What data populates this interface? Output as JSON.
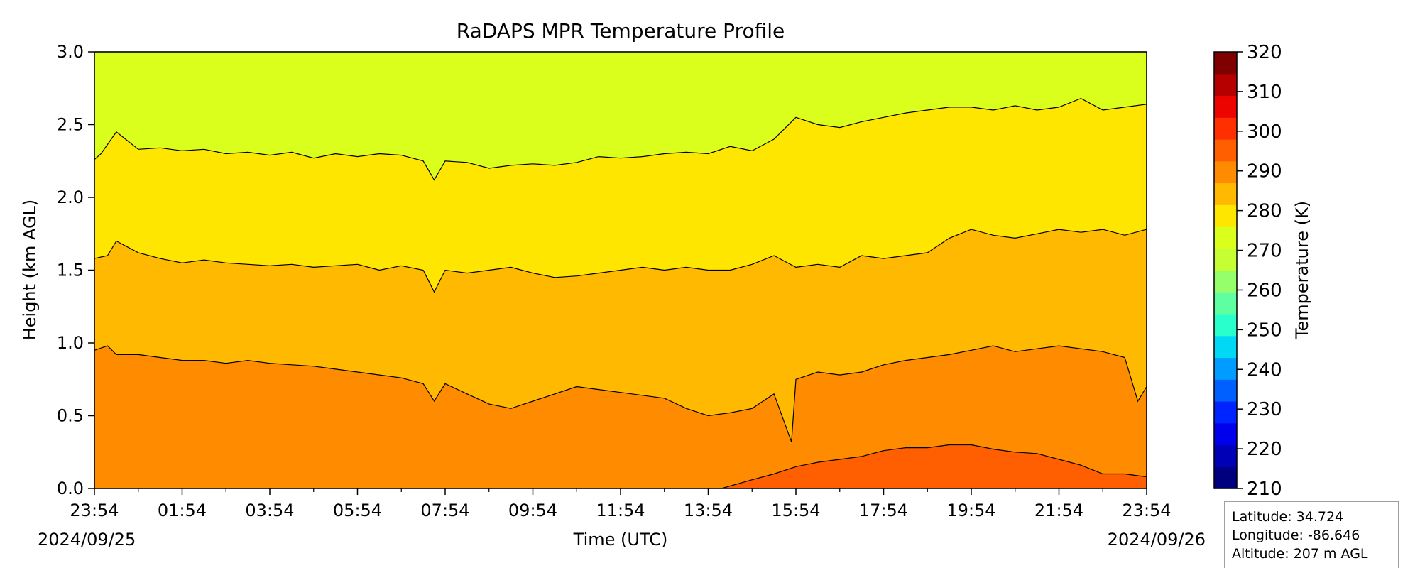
{
  "chart_data": {
    "type": "heatmap",
    "subtype": "filled-contour",
    "title": "RaDAPS MPR Temperature Profile",
    "xlabel": "Time (UTC)",
    "ylabel": "Height (km AGL)",
    "x_ticks": [
      "23:54",
      "01:54",
      "03:54",
      "05:54",
      "07:54",
      "09:54",
      "11:54",
      "13:54",
      "15:54",
      "17:54",
      "19:54",
      "21:54",
      "23:54"
    ],
    "x_start_date": "2024/09/25",
    "x_end_date": "2024/09/26",
    "y_range": [
      0.0,
      3.0
    ],
    "y_ticks": [
      "0.0",
      "0.5",
      "1.0",
      "1.5",
      "2.0",
      "2.5",
      "3.0"
    ],
    "colorbar": {
      "label": "Temperature (K)",
      "range": [
        210,
        320
      ],
      "tick_values": [
        210,
        220,
        230,
        240,
        250,
        260,
        270,
        280,
        290,
        300,
        310,
        320
      ],
      "level_step": 5,
      "colormap": "jet",
      "level_colors": [
        "#00007f",
        "#0000b6",
        "#0000ed",
        "#0024ff",
        "#0060ff",
        "#009cff",
        "#00d8f6",
        "#29ffcd",
        "#5effa0",
        "#94ff6a",
        "#c5ff33",
        "#dbff1c",
        "#ffe600",
        "#ffb900",
        "#ff8c00",
        "#ff5f00",
        "#ff2f00",
        "#ed0400",
        "#b60000",
        "#7f0000"
      ]
    },
    "contour_bands": [
      {
        "range_K": "295-300",
        "color": "#ff5f00"
      },
      {
        "range_K": "290-295",
        "color": "#ff8c00"
      },
      {
        "range_K": "285-290",
        "color": "#ffb900"
      },
      {
        "range_K": "280-285",
        "color": "#ffe600"
      },
      {
        "range_K": "275-280",
        "color": "#dbff1c"
      },
      {
        "range_K": "270-275",
        "color": "#94ff6a"
      }
    ],
    "isolines": [
      {
        "level_K": 285,
        "hours": [
          0,
          0.15,
          0.5,
          1,
          1.5,
          2,
          2.5,
          3,
          3.5,
          4,
          4.5,
          5,
          5.5,
          6,
          6.5,
          7,
          7.5,
          7.75,
          8,
          8.5,
          9,
          9.5,
          10,
          10.5,
          11,
          11.5,
          12,
          12.5,
          13,
          13.5,
          14,
          14.5,
          15,
          15.5,
          16,
          16.5,
          17,
          17.5,
          18,
          18.5,
          19,
          19.5,
          20,
          20.5,
          21,
          21.5,
          22,
          22.5,
          23,
          23.5,
          24
        ],
        "heights_km": [
          2.26,
          2.3,
          2.45,
          2.33,
          2.34,
          2.32,
          2.33,
          2.3,
          2.31,
          2.29,
          2.31,
          2.27,
          2.3,
          2.28,
          2.3,
          2.29,
          2.25,
          2.12,
          2.25,
          2.24,
          2.2,
          2.22,
          2.23,
          2.22,
          2.24,
          2.28,
          2.27,
          2.28,
          2.3,
          2.31,
          2.3,
          2.35,
          2.32,
          2.4,
          2.55,
          2.5,
          2.48,
          2.52,
          2.55,
          2.58,
          2.6,
          2.62,
          2.62,
          2.6,
          2.63,
          2.6,
          2.62,
          2.68,
          2.6,
          2.62,
          2.64
        ]
      },
      {
        "level_K": 290,
        "hours": [
          0,
          0.3,
          0.5,
          1,
          1.5,
          2,
          2.5,
          3,
          3.5,
          4,
          4.5,
          5,
          5.5,
          6,
          6.5,
          7,
          7.5,
          7.75,
          8,
          8.5,
          9,
          9.5,
          10,
          10.5,
          11,
          11.5,
          12,
          12.5,
          13,
          13.5,
          14,
          14.5,
          15,
          15.5,
          16,
          16.5,
          17,
          17.5,
          18,
          18.5,
          19,
          19.5,
          20,
          20.5,
          21,
          21.5,
          22,
          22.5,
          23,
          23.5,
          24
        ],
        "heights_km": [
          1.58,
          1.6,
          1.7,
          1.62,
          1.58,
          1.55,
          1.57,
          1.55,
          1.54,
          1.53,
          1.54,
          1.52,
          1.53,
          1.54,
          1.5,
          1.53,
          1.5,
          1.35,
          1.5,
          1.48,
          1.5,
          1.52,
          1.48,
          1.45,
          1.46,
          1.48,
          1.5,
          1.52,
          1.5,
          1.52,
          1.5,
          1.5,
          1.54,
          1.6,
          1.52,
          1.54,
          1.52,
          1.6,
          1.58,
          1.6,
          1.62,
          1.72,
          1.78,
          1.74,
          1.72,
          1.75,
          1.78,
          1.76,
          1.78,
          1.74,
          1.78
        ]
      },
      {
        "level_K": 295,
        "hours": [
          0,
          0.3,
          0.5,
          1,
          1.5,
          2,
          2.5,
          3,
          3.5,
          4,
          4.5,
          5,
          5.5,
          6,
          6.5,
          7,
          7.5,
          7.75,
          8,
          8.5,
          9,
          9.5,
          10,
          10.5,
          11,
          11.5,
          12,
          12.5,
          13,
          13.5,
          14,
          14.5,
          15,
          15.5,
          15.9,
          16,
          16.5,
          17,
          17.5,
          18,
          18.5,
          19,
          19.5,
          20,
          20.5,
          21,
          21.5,
          22,
          22.5,
          23,
          23.5,
          23.8,
          24
        ],
        "heights_km": [
          0.95,
          0.98,
          0.92,
          0.92,
          0.9,
          0.88,
          0.88,
          0.86,
          0.88,
          0.86,
          0.85,
          0.84,
          0.82,
          0.8,
          0.78,
          0.76,
          0.72,
          0.6,
          0.72,
          0.65,
          0.58,
          0.55,
          0.6,
          0.65,
          0.7,
          0.68,
          0.66,
          0.64,
          0.62,
          0.55,
          0.5,
          0.52,
          0.55,
          0.65,
          0.32,
          0.75,
          0.8,
          0.78,
          0.8,
          0.85,
          0.88,
          0.9,
          0.92,
          0.95,
          0.98,
          0.94,
          0.96,
          0.98,
          0.96,
          0.94,
          0.9,
          0.6,
          0.7
        ]
      },
      {
        "level_K": 300,
        "hours": [
          14.3,
          15,
          15.5,
          16,
          16.5,
          17,
          17.5,
          18,
          18.5,
          19,
          19.5,
          20,
          20.5,
          21,
          21.5,
          22,
          22.5,
          23,
          23.5,
          24
        ],
        "heights_km": [
          0,
          0.06,
          0.1,
          0.15,
          0.18,
          0.2,
          0.22,
          0.26,
          0.28,
          0.28,
          0.3,
          0.3,
          0.27,
          0.25,
          0.24,
          0.2,
          0.16,
          0.1,
          0.1,
          0.08
        ]
      }
    ]
  },
  "station_info": {
    "latitude": "Latitude: 34.724",
    "longitude": "Longitude: -86.646",
    "altitude": "Altitude: 207 m AGL"
  }
}
